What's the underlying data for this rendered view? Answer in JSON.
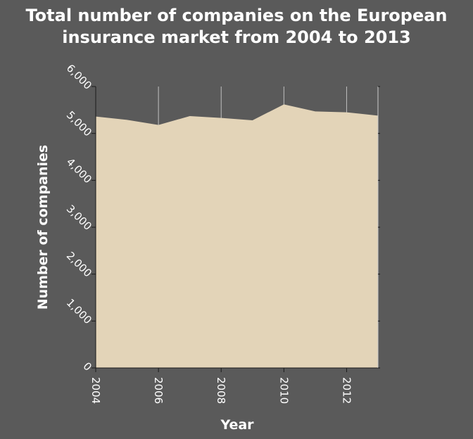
{
  "chart_data": {
    "type": "area",
    "title_lines": [
      "Total number of companies on the European",
      "insurance market from 2004 to 2013"
    ],
    "xlabel": "Year",
    "ylabel": "Number of companies",
    "x": [
      2004,
      2005,
      2006,
      2007,
      2008,
      2009,
      2010,
      2011,
      2012,
      2013
    ],
    "y": [
      5360,
      5290,
      5180,
      5370,
      5330,
      5280,
      5620,
      5470,
      5450,
      5380
    ],
    "xlim": [
      2004,
      2013
    ],
    "ylim": [
      0,
      6000
    ],
    "x_ticks": [
      2004,
      2006,
      2008,
      2010,
      2012
    ],
    "x_tick_labels": [
      "2004",
      "2006",
      "2008",
      "2010",
      "2012"
    ],
    "y_ticks": [
      0,
      1000,
      2000,
      3000,
      4000,
      5000,
      6000
    ],
    "y_tick_labels": [
      "0",
      "1,000",
      "2,000",
      "3,000",
      "4,000",
      "5,000",
      "6,000"
    ],
    "grid": true,
    "colors": {
      "background": "#5a5a5a",
      "fill": "#e3d4b8",
      "grid": "#bfbfbf",
      "text": "#ffffff"
    }
  }
}
